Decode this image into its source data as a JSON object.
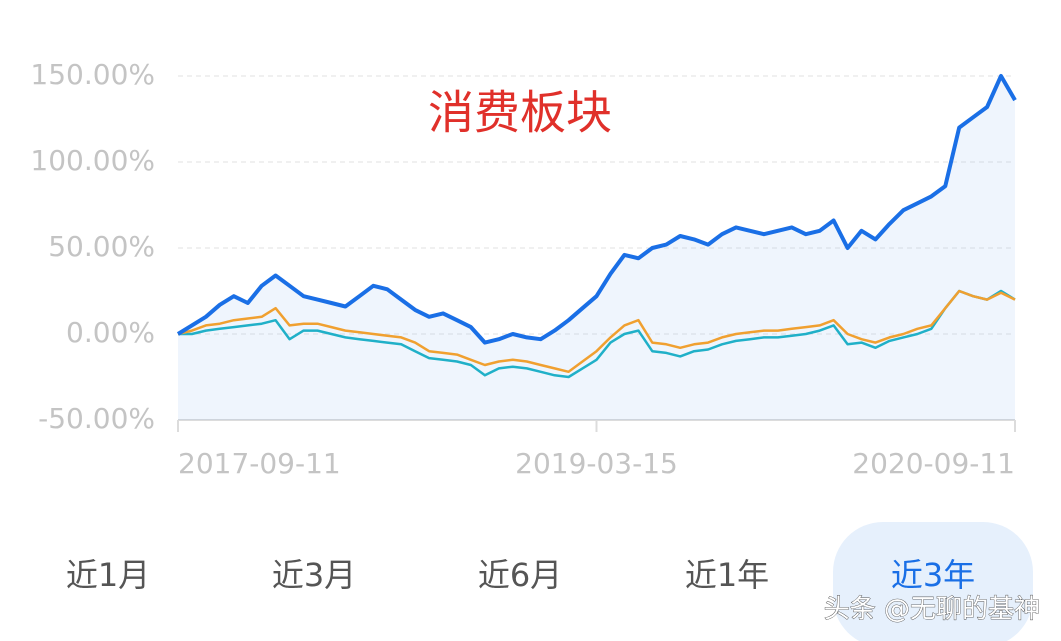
{
  "chart_data": {
    "type": "line",
    "annotation": "消费板块",
    "annotation_color": "#e0302a",
    "categories": [
      "2017-09-11",
      null,
      null,
      null,
      null,
      null,
      null,
      null,
      null,
      null,
      null,
      null,
      null,
      null,
      null,
      null,
      null,
      null,
      null,
      null,
      null,
      null,
      null,
      null,
      null,
      null,
      null,
      null,
      null,
      null,
      "2019-03-15",
      null,
      null,
      null,
      null,
      null,
      null,
      null,
      null,
      null,
      null,
      null,
      null,
      null,
      null,
      null,
      null,
      null,
      null,
      null,
      null,
      null,
      null,
      null,
      null,
      null,
      null,
      null,
      null,
      null,
      "2020-09-11"
    ],
    "series": [
      {
        "color": "#1a6fe6",
        "area": true,
        "values": [
          0,
          5,
          10,
          17,
          22,
          18,
          28,
          34,
          28,
          22,
          20,
          18,
          16,
          22,
          28,
          26,
          20,
          14,
          10,
          12,
          8,
          4,
          -5,
          -3,
          0,
          -2,
          -3,
          2,
          8,
          15,
          22,
          35,
          46,
          44,
          50,
          52,
          57,
          55,
          52,
          58,
          62,
          60,
          58,
          60,
          62,
          58,
          60,
          66,
          50,
          60,
          55,
          64,
          72,
          76,
          80,
          86,
          120,
          126,
          132,
          150,
          136
        ]
      },
      {
        "color": "#f0a030",
        "values": [
          0,
          2,
          5,
          6,
          8,
          9,
          10,
          15,
          5,
          6,
          6,
          4,
          2,
          1,
          0,
          -1,
          -2,
          -5,
          -10,
          -11,
          -12,
          -15,
          -18,
          -16,
          -15,
          -16,
          -18,
          -20,
          -22,
          -16,
          -10,
          -2,
          5,
          8,
          -5,
          -6,
          -8,
          -6,
          -5,
          -2,
          0,
          1,
          2,
          2,
          3,
          4,
          5,
          8,
          0,
          -3,
          -5,
          -2,
          0,
          3,
          5,
          15,
          25,
          22,
          20,
          24,
          20
        ]
      },
      {
        "color": "#20b0c8",
        "values": [
          0,
          0,
          2,
          3,
          4,
          5,
          6,
          8,
          -3,
          2,
          2,
          0,
          -2,
          -3,
          -4,
          -5,
          -6,
          -10,
          -14,
          -15,
          -16,
          -18,
          -24,
          -20,
          -19,
          -20,
          -22,
          -24,
          -25,
          -20,
          -15,
          -5,
          0,
          2,
          -10,
          -11,
          -13,
          -10,
          -9,
          -6,
          -4,
          -3,
          -2,
          -2,
          -1,
          0,
          2,
          5,
          -6,
          -5,
          -8,
          -4,
          -2,
          0,
          3,
          15,
          25,
          22,
          20,
          25,
          20
        ]
      }
    ],
    "ylim": [
      -50,
      150
    ],
    "yticks": [
      {
        "value": -50,
        "label": "-50.00%"
      },
      {
        "value": 0,
        "label": "0.00%"
      },
      {
        "value": 50,
        "label": "50.00%"
      },
      {
        "value": 100,
        "label": "100.00%"
      },
      {
        "value": 150,
        "label": "150.00%"
      }
    ],
    "grid": true
  },
  "tabs": [
    "近1月",
    "近3月",
    "近6月",
    "近1年",
    "近3年"
  ],
  "active_tab": 4,
  "watermark": "头条 @无聊的基神"
}
